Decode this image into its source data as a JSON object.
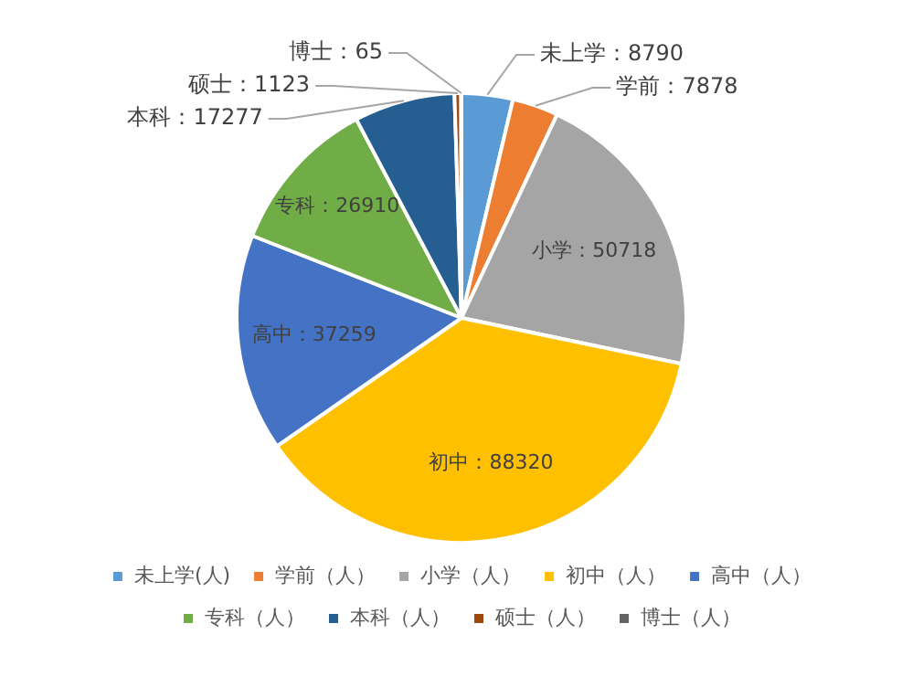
{
  "chart_data": {
    "type": "pie",
    "categories": [
      "未上学(人)",
      "学前（人）",
      "小学（人）",
      "初中（人）",
      "高中（人）",
      "专科（人）",
      "本科（人）",
      "硕士（人）",
      "博士（人）"
    ],
    "values": [
      8790,
      7878,
      50718,
      88320,
      37259,
      26910,
      17277,
      1123,
      65
    ],
    "colors": [
      "#5b9bd5",
      "#ed7d31",
      "#a5a5a5",
      "#ffc000",
      "#4472c4",
      "#70ad47",
      "#255e91",
      "#9e480e",
      "#636363"
    ],
    "value_labels": [
      "未上学：8790",
      "学前：7878",
      "小学：50718",
      "初中：88320",
      "高中：37259",
      "专科：26910",
      "本科：17277",
      "硕士：1123",
      "博士：65"
    ],
    "legend": "bottom"
  }
}
